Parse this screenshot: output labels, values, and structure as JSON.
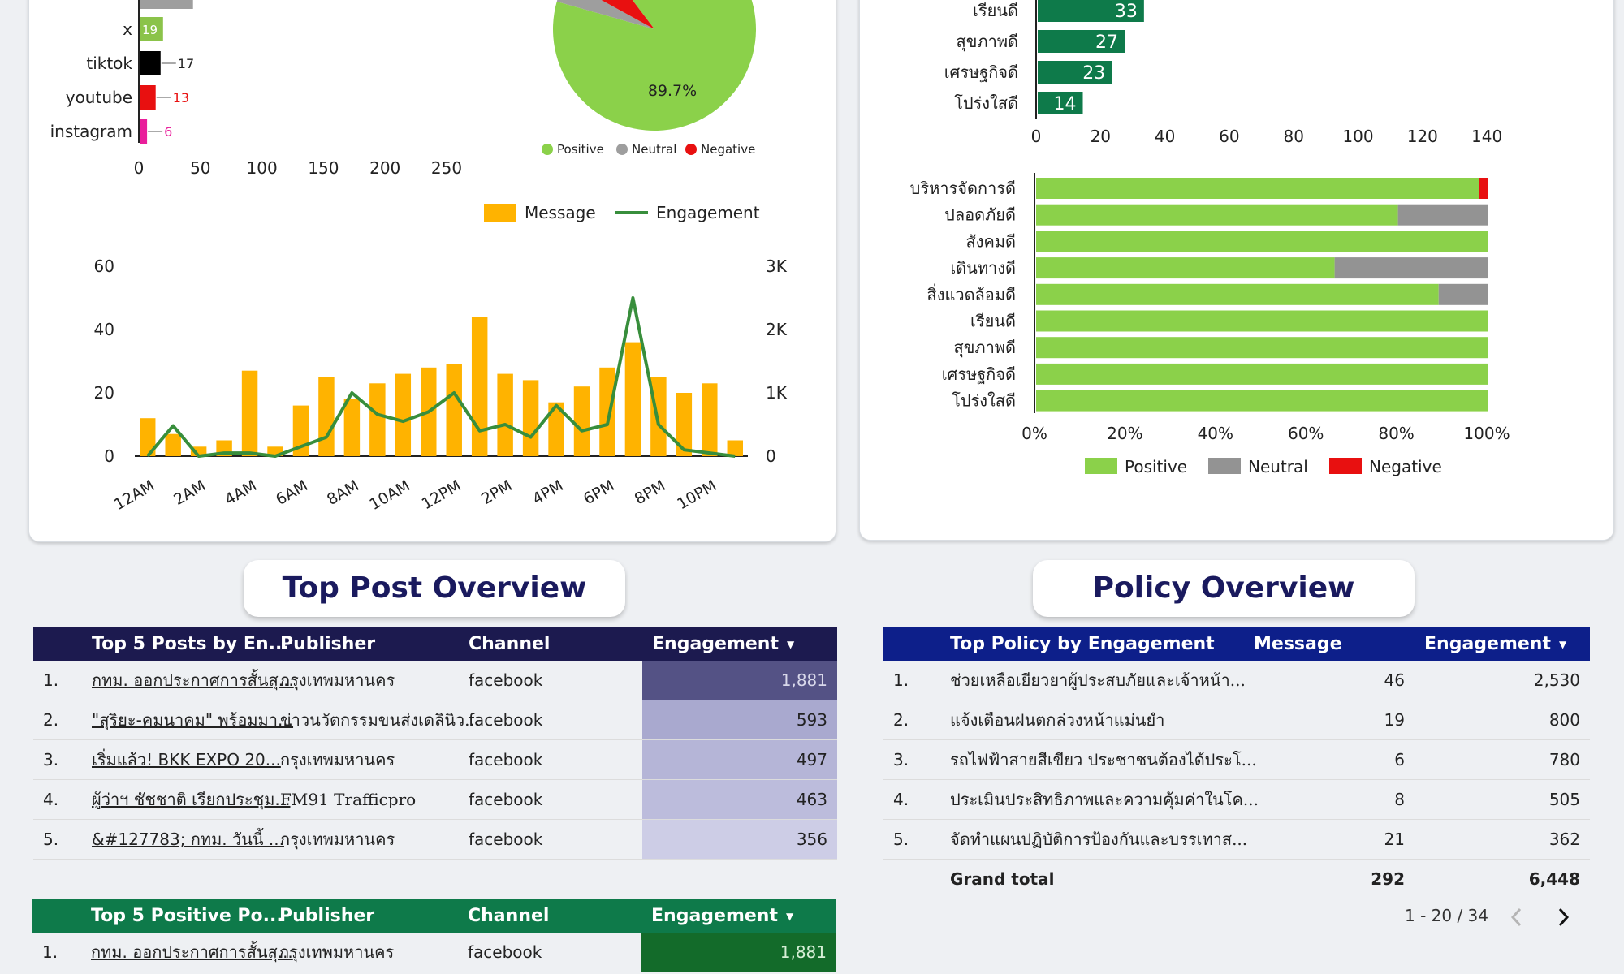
{
  "channels_chart": {
    "labels": [
      "x",
      "tiktok",
      "youtube",
      "instagram"
    ],
    "values": [
      19,
      17,
      13,
      6
    ],
    "colors": [
      "#8bc34a",
      "#000000",
      "#e81010",
      "#e91e9b"
    ],
    "partial_top_value": 44,
    "partial_top_color": "#9e9e9e",
    "x_ticks": [
      "0",
      "50",
      "100",
      "150",
      "200",
      "250"
    ]
  },
  "sentiment_pie": {
    "slices": [
      {
        "label": "Positive",
        "pct": 89.7,
        "color": "#8bd14a"
      },
      {
        "label": "Neutral",
        "pct": 3.6,
        "color": "#9e9e9e"
      },
      {
        "label": "Negative",
        "pct": 6.7,
        "color": "#e81010"
      }
    ],
    "positive_label": "89.7%",
    "legend": [
      "Positive",
      "Neutral",
      "Negative"
    ]
  },
  "hourly_chart": {
    "type": "bar+line",
    "legend": [
      "Message",
      "Engagement"
    ],
    "colors": {
      "Message": "#ffb300",
      "Engagement": "#388e3c"
    },
    "hours": [
      "12AM",
      "1AM",
      "2AM",
      "3AM",
      "4AM",
      "5AM",
      "6AM",
      "7AM",
      "8AM",
      "9AM",
      "10AM",
      "11AM",
      "12PM",
      "1PM",
      "2PM",
      "3PM",
      "4PM",
      "5PM",
      "6PM",
      "7PM",
      "8PM",
      "9PM",
      "10PM",
      "11PM"
    ],
    "x_tick_labels": [
      "12AM",
      "2AM",
      "4AM",
      "6AM",
      "8AM",
      "10AM",
      "12PM",
      "2PM",
      "4PM",
      "6PM",
      "8PM",
      "10PM"
    ],
    "messages": [
      12,
      7,
      3,
      5,
      27,
      3,
      16,
      25,
      18,
      23,
      26,
      28,
      29,
      44,
      26,
      24,
      17,
      22,
      28,
      36,
      25,
      20,
      23,
      5
    ],
    "engagement": [
      0,
      480,
      0,
      50,
      50,
      0,
      150,
      300,
      1000,
      660,
      550,
      700,
      1000,
      400,
      500,
      300,
      800,
      400,
      500,
      2500,
      500,
      100,
      50,
      0
    ],
    "y_left_ticks": [
      "0",
      "20",
      "40",
      "60"
    ],
    "y_right_ticks": [
      "0",
      "1K",
      "2K",
      "3K"
    ],
    "y_left_max": 60,
    "y_right_max": 3000
  },
  "policy_bar_chart": {
    "labels": [
      "เรียนดี",
      "สุขภาพดี",
      "เศรษฐกิจดี",
      "โปร่งใสดี"
    ],
    "values": [
      33,
      27,
      23,
      14
    ],
    "color": "#0e7a4a",
    "x_ticks": [
      "0",
      "20",
      "40",
      "60",
      "80",
      "100",
      "120",
      "140"
    ],
    "x_max": 140
  },
  "policy_sentiment_chart": {
    "categories": [
      "บริหารจัดการดี",
      "ปลอดภัยดี",
      "สังคมดี",
      "เดินทางดี",
      "สิ่งแวดล้อมดี",
      "เรียนดี",
      "สุขภาพดี",
      "เศรษฐกิจดี",
      "โปร่งใสดี"
    ],
    "positive": [
      98,
      80,
      100,
      66,
      89,
      100,
      100,
      100,
      100
    ],
    "neutral": [
      0,
      20,
      0,
      34,
      11,
      0,
      0,
      0,
      0
    ],
    "negative": [
      2,
      0,
      0,
      0,
      0,
      0,
      0,
      0,
      0
    ],
    "colors": {
      "positive": "#8bd14a",
      "neutral": "#939393",
      "negative": "#e81010"
    },
    "x_ticks": [
      "0%",
      "20%",
      "40%",
      "60%",
      "80%",
      "100%"
    ],
    "legend": [
      "Positive",
      "Neutral",
      "Negative"
    ]
  },
  "top_post_title": "Top Post Overview",
  "policy_title": "Policy Overview",
  "top_posts_table": {
    "headers": [
      "Top 5 Posts by En...",
      "Publisher",
      "Channel",
      "Engagement"
    ],
    "rows": [
      {
        "idx": "1.",
        "title": "กทม. ออกประกาศการสั้นสุ...",
        "publisher": "กรุงเทพมหานคร",
        "channel": "facebook",
        "engagement": "1,881"
      },
      {
        "idx": "2.",
        "title": "\"สุริยะ-คมนาคม\" พร้อมมา...",
        "publisher": "ข่าวนวัตกรรมขนส่งเดลินิว...",
        "channel": "facebook",
        "engagement": "593"
      },
      {
        "idx": "3.",
        "title": "เริ่มแล้ว! BKK EXPO 20...",
        "publisher": "กรุงเทพมหานคร",
        "channel": "facebook",
        "engagement": "497"
      },
      {
        "idx": "4.",
        "title": "ผู้ว่าฯ ชัชชาติ เรียกประชุม...",
        "publisher": "FM91 Trafficpro",
        "channel": "facebook",
        "engagement": "463"
      },
      {
        "idx": "5.",
        "title": "&#127783; กทม. วันนี้ ...",
        "publisher": "กรุงเทพมหานคร",
        "channel": "facebook",
        "engagement": "356"
      }
    ],
    "heat_colors": [
      "#545285",
      "#a9a9cf",
      "#b5b5d7",
      "#bcbcdc",
      "#cdcde6"
    ]
  },
  "positive_posts_table": {
    "headers": [
      "Top 5 Positive Po...",
      "Publisher",
      "Channel",
      "Engagement"
    ],
    "rows": [
      {
        "idx": "1.",
        "title": "กทม. ออกประกาศการสั้นสุ...",
        "publisher": "กรุงเทพมหานคร",
        "channel": "facebook",
        "engagement": "1,881"
      }
    ]
  },
  "policy_table": {
    "headers": [
      "Top Policy by Engagement",
      "Message",
      "Engagement"
    ],
    "rows": [
      {
        "idx": "1.",
        "policy": "ช่วยเหลือเยียวยาผู้ประสบภัยและเจ้าหน้า...",
        "message": "46",
        "engagement": "2,530"
      },
      {
        "idx": "2.",
        "policy": "แจ้งเตือนฝนตกล่วงหน้าแม่นยำ",
        "message": "19",
        "engagement": "800"
      },
      {
        "idx": "3.",
        "policy": "รถไฟฟ้าสายสีเขียว ประชาชนต้องได้ประโ...",
        "message": "6",
        "engagement": "780"
      },
      {
        "idx": "4.",
        "policy": "ประเมินประสิทธิภาพและความคุ้มค่าในโค...",
        "message": "8",
        "engagement": "505"
      },
      {
        "idx": "5.",
        "policy": "จัดทำแผนปฏิบัติการป้องกันและบรรเทาส...",
        "message": "21",
        "engagement": "362"
      }
    ],
    "grand_total_label": "Grand total",
    "grand_total_message": "292",
    "grand_total_engagement": "6,448"
  },
  "pagination": {
    "range": "1 - 20 / 34"
  }
}
